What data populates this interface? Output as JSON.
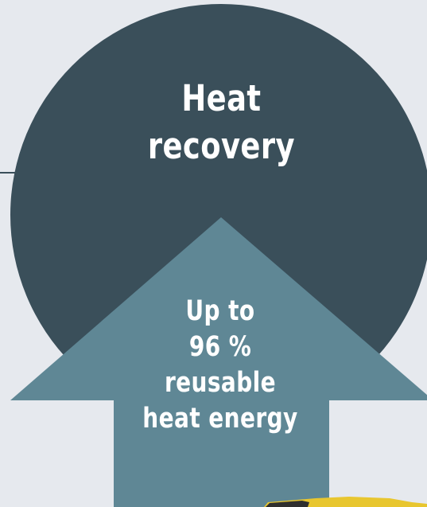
{
  "graphic": {
    "title_lines": [
      "Heat",
      "recovery"
    ],
    "stat_lines": [
      "Up to",
      "96 %",
      "reusable",
      "heat energy"
    ]
  },
  "colors": {
    "background": "#e6e9ee",
    "circle": "#3a4f5a",
    "arrow": "#5f8795",
    "text": "#ffffff",
    "accent_strip": "#e8c62f"
  }
}
